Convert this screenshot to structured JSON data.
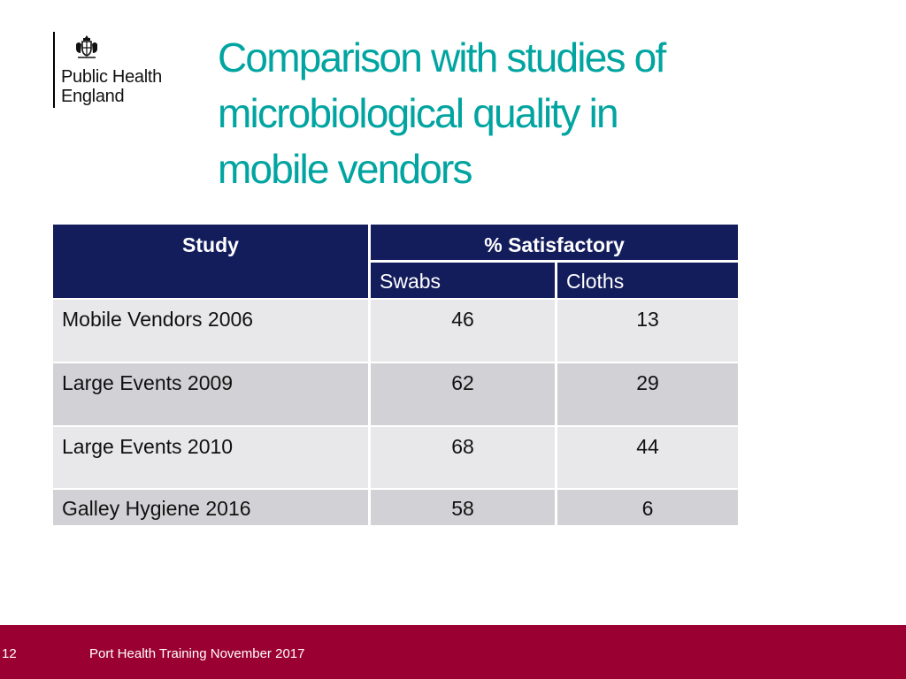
{
  "logo": {
    "line1": "Public Health",
    "line2": "England"
  },
  "title": {
    "line1": "Comparison with studies of",
    "line2": "microbiological quality in",
    "line3": "mobile vendors"
  },
  "table": {
    "header_study": "Study",
    "header_satisfactory": "% Satisfactory",
    "sub_swabs": "Swabs",
    "sub_cloths": "Cloths",
    "rows": [
      {
        "study": "Mobile Vendors 2006",
        "swabs": "46",
        "cloths": "13"
      },
      {
        "study": "Large Events 2009",
        "swabs": "62",
        "cloths": "29"
      },
      {
        "study": "Large Events 2010",
        "swabs": "68",
        "cloths": "44"
      },
      {
        "study": "Galley Hygiene 2016",
        "swabs": "58",
        "cloths": "6"
      }
    ]
  },
  "footer": {
    "slide_number": "12",
    "text": "Port Health Training November 2017"
  },
  "colors": {
    "title": "#00a4a0",
    "table_header": "#141d5c",
    "footer": "#9b0033"
  }
}
